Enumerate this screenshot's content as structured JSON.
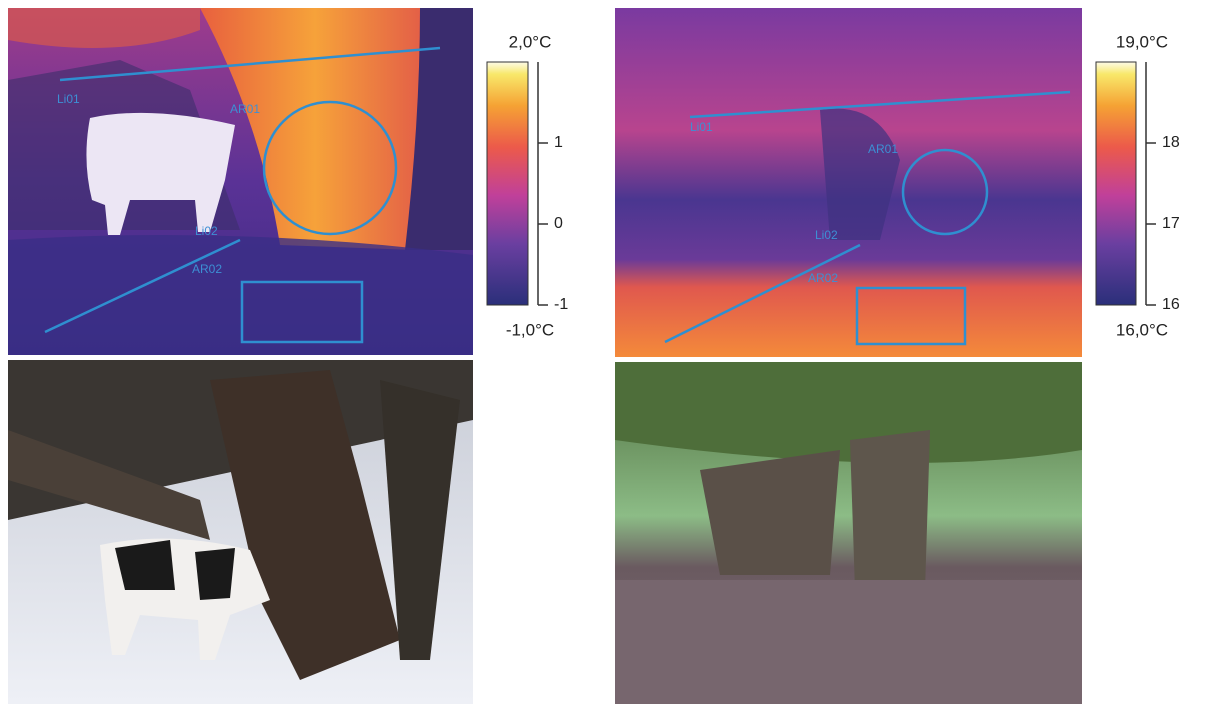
{
  "panels": [
    {
      "colorbar": {
        "max_label": "2,0°C",
        "min_label": "-1,0°C",
        "lim": [
          -1,
          2
        ],
        "ticks": [
          1,
          0,
          -1
        ]
      },
      "annotations": [
        "Li01",
        "AR01",
        "Li02",
        "AR02"
      ]
    },
    {
      "colorbar": {
        "max_label": "19,0°C",
        "min_label": "16,0°C",
        "lim": [
          16,
          19
        ],
        "ticks": [
          18,
          17,
          16
        ]
      },
      "annotations": [
        "Li01",
        "AR01",
        "Li02",
        "AR02"
      ]
    }
  ]
}
